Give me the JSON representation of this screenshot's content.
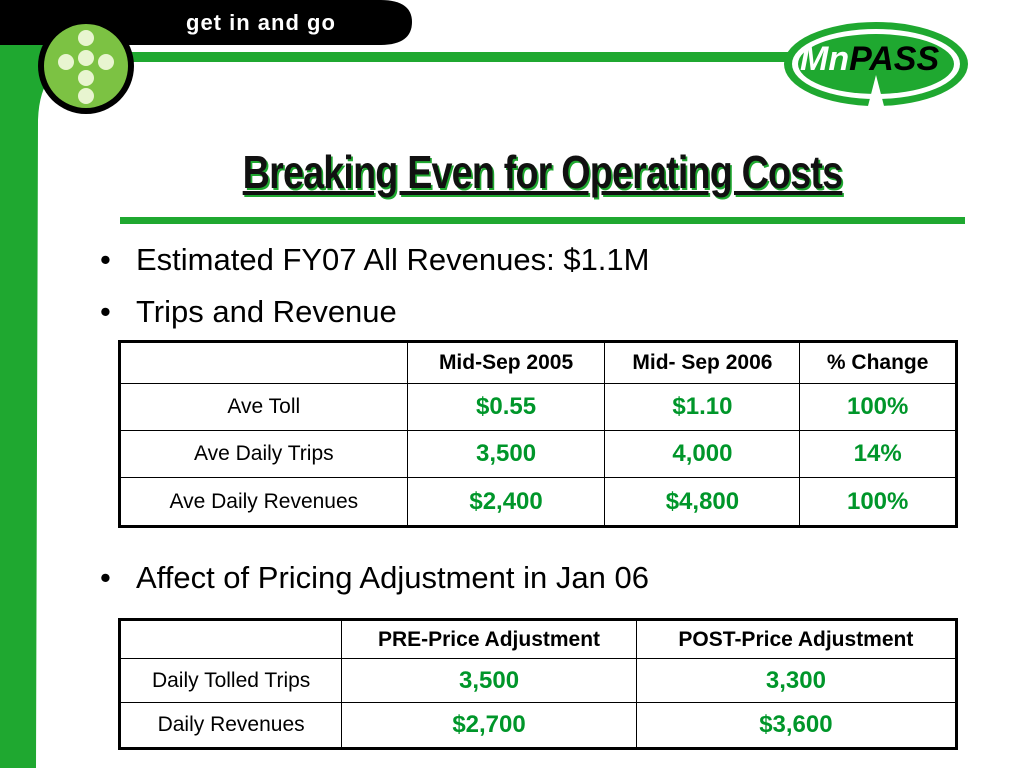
{
  "header": {
    "tagline": "get in and go",
    "logo_prefix": "Mn",
    "logo_suffix": "PASS"
  },
  "title": "Breaking Even for Operating Costs",
  "bullets": [
    "Estimated FY07 All Revenues:  $1.1M",
    "Trips and Revenue",
    "Affect of Pricing Adjustment in Jan 06"
  ],
  "tables": [
    {
      "columns": [
        "",
        "Mid-Sep 2005",
        "Mid- Sep 2006",
        "% Change"
      ],
      "rows": [
        [
          "Ave Toll",
          "$0.55",
          "$1.10",
          "100%"
        ],
        [
          "Ave Daily Trips",
          "3,500",
          "4,000",
          "14%"
        ],
        [
          "Ave Daily Revenues",
          "$2,400",
          "$4,800",
          "100%"
        ]
      ]
    },
    {
      "columns": [
        "",
        "PRE-Price Adjustment",
        "POST-Price Adjustment"
      ],
      "rows": [
        [
          "Daily Tolled Trips",
          "3,500",
          "3,300"
        ],
        [
          "Daily Revenues",
          "$2,700",
          "$3,600"
        ]
      ]
    }
  ]
}
